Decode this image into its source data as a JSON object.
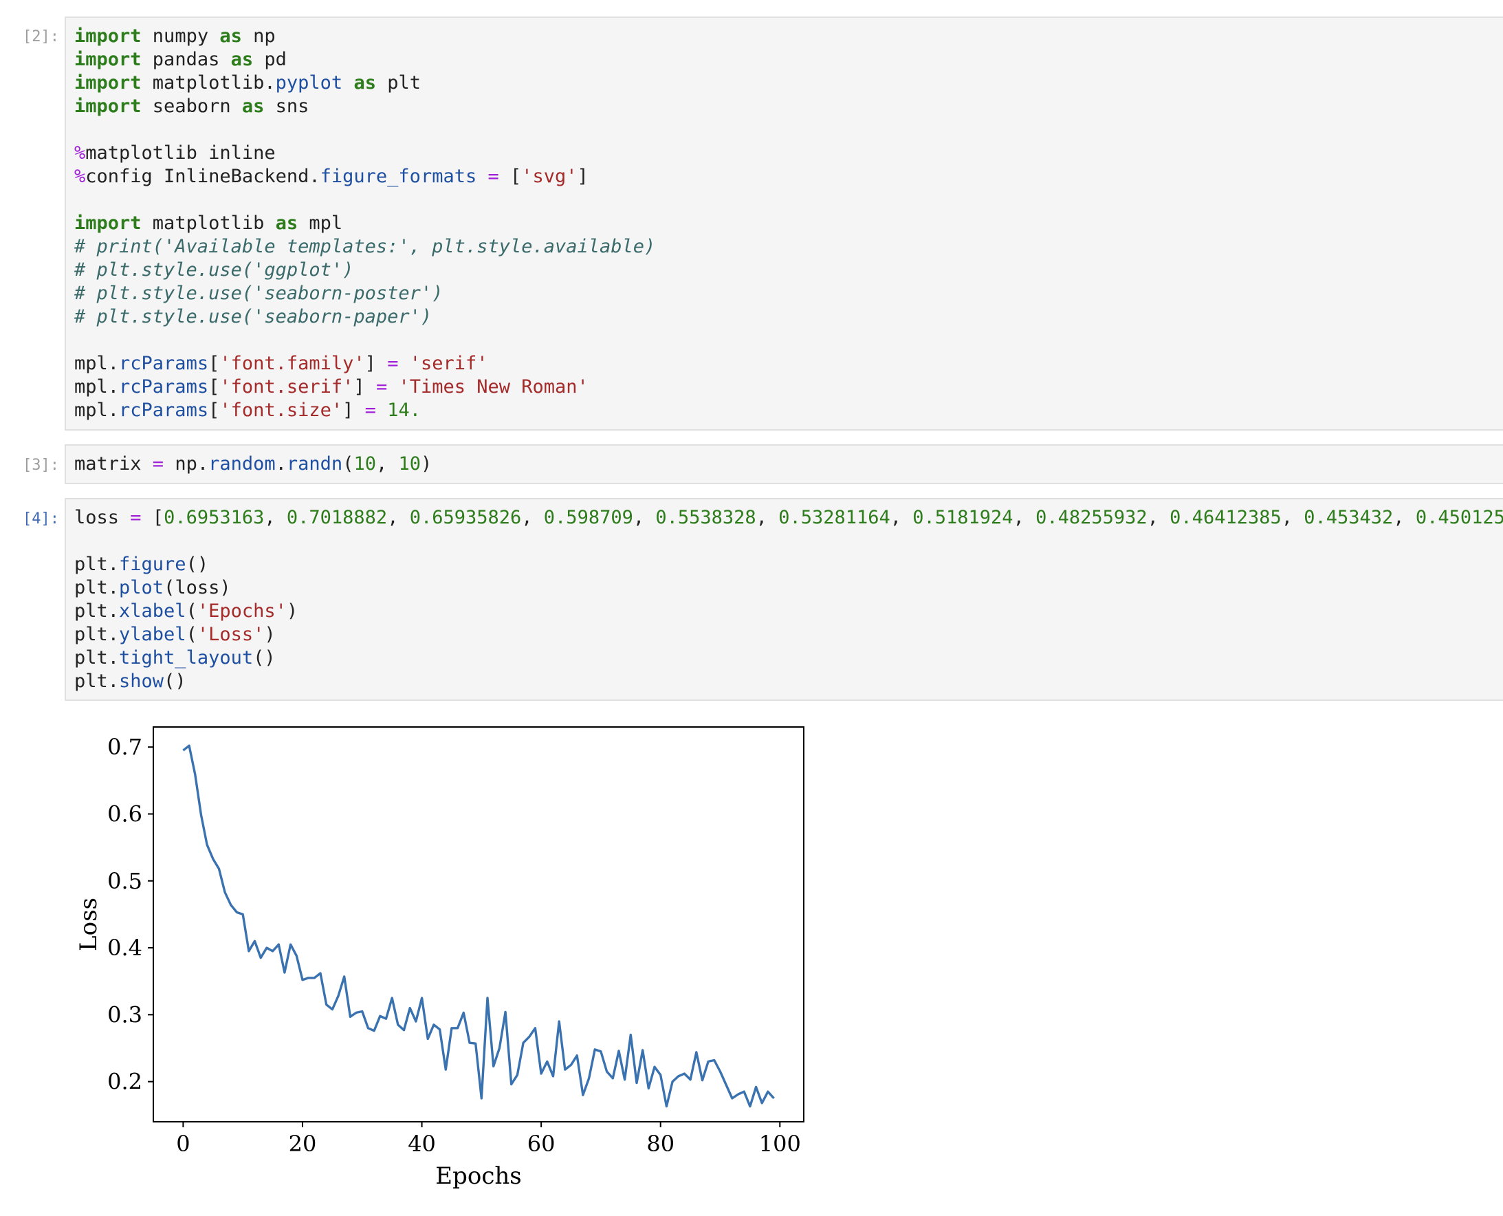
{
  "cells": [
    {
      "prompt": "[2]:",
      "lines": [
        [
          [
            "kw",
            "import"
          ],
          [
            "t",
            " numpy "
          ],
          [
            "kw",
            "as"
          ],
          [
            "t",
            " np"
          ]
        ],
        [
          [
            "kw",
            "import"
          ],
          [
            "t",
            " pandas "
          ],
          [
            "kw",
            "as"
          ],
          [
            "t",
            " pd"
          ]
        ],
        [
          [
            "kw",
            "import"
          ],
          [
            "t",
            " matplotlib."
          ],
          [
            "attr",
            "pyplot"
          ],
          [
            "t",
            " "
          ],
          [
            "kw",
            "as"
          ],
          [
            "t",
            " plt"
          ]
        ],
        [
          [
            "kw",
            "import"
          ],
          [
            "t",
            " seaborn "
          ],
          [
            "kw",
            "as"
          ],
          [
            "t",
            " sns"
          ]
        ],
        [],
        [
          [
            "mg",
            "%"
          ],
          [
            "t",
            "matplotlib inline"
          ]
        ],
        [
          [
            "mg",
            "%"
          ],
          [
            "t",
            "config InlineBackend."
          ],
          [
            "attr",
            "figure_formats"
          ],
          [
            "t",
            " "
          ],
          [
            "op",
            "="
          ],
          [
            "t",
            " ["
          ],
          [
            "str",
            "'svg'"
          ],
          [
            "t",
            "]"
          ]
        ],
        [],
        [
          [
            "kw",
            "import"
          ],
          [
            "t",
            " matplotlib "
          ],
          [
            "kw",
            "as"
          ],
          [
            "t",
            " mpl"
          ]
        ],
        [
          [
            "cm",
            "# print('Available templates:', plt.style.available)"
          ]
        ],
        [
          [
            "cm",
            "# plt.style.use('ggplot')"
          ]
        ],
        [
          [
            "cm",
            "# plt.style.use('seaborn-poster')"
          ]
        ],
        [
          [
            "cm",
            "# plt.style.use('seaborn-paper')"
          ]
        ],
        [],
        [
          [
            "t",
            "mpl."
          ],
          [
            "attr",
            "rcParams"
          ],
          [
            "t",
            "["
          ],
          [
            "str",
            "'font.family'"
          ],
          [
            "t",
            "] "
          ],
          [
            "op",
            "="
          ],
          [
            "t",
            " "
          ],
          [
            "str",
            "'serif'"
          ]
        ],
        [
          [
            "t",
            "mpl."
          ],
          [
            "attr",
            "rcParams"
          ],
          [
            "t",
            "["
          ],
          [
            "str",
            "'font.serif'"
          ],
          [
            "t",
            "] "
          ],
          [
            "op",
            "="
          ],
          [
            "t",
            " "
          ],
          [
            "str",
            "'Times New Roman'"
          ]
        ],
        [
          [
            "t",
            "mpl."
          ],
          [
            "attr",
            "rcParams"
          ],
          [
            "t",
            "["
          ],
          [
            "str",
            "'font.size'"
          ],
          [
            "t",
            "] "
          ],
          [
            "op",
            "="
          ],
          [
            "t",
            " "
          ],
          [
            "num",
            "14."
          ]
        ]
      ]
    },
    {
      "prompt": "[3]:",
      "lines": [
        [
          [
            "t",
            "matrix "
          ],
          [
            "op",
            "="
          ],
          [
            "t",
            " np."
          ],
          [
            "attr",
            "random"
          ],
          [
            "t",
            "."
          ],
          [
            "attr",
            "randn"
          ],
          [
            "t",
            "("
          ],
          [
            "num",
            "10"
          ],
          [
            "t",
            ", "
          ],
          [
            "num",
            "10"
          ],
          [
            "t",
            ")"
          ]
        ]
      ]
    },
    {
      "prompt": "[4]:",
      "lines": [
        [
          [
            "t",
            "loss "
          ],
          [
            "op",
            "="
          ],
          [
            "t",
            " ["
          ],
          [
            "num",
            "0.6953163"
          ],
          [
            "t",
            ", "
          ],
          [
            "num",
            "0.7018882"
          ],
          [
            "t",
            ", "
          ],
          [
            "num",
            "0.65935826"
          ],
          [
            "t",
            ", "
          ],
          [
            "num",
            "0.598709"
          ],
          [
            "t",
            ", "
          ],
          [
            "num",
            "0.5538328"
          ],
          [
            "t",
            ", "
          ],
          [
            "num",
            "0.53281164"
          ],
          [
            "t",
            ", "
          ],
          [
            "num",
            "0.5181924"
          ],
          [
            "t",
            ", "
          ],
          [
            "num",
            "0.48255932"
          ],
          [
            "t",
            ", "
          ],
          [
            "num",
            "0.46412385"
          ],
          [
            "t",
            ", "
          ],
          [
            "num",
            "0.453432"
          ],
          [
            "t",
            ", "
          ],
          [
            "num",
            "0.4501256"
          ],
          [
            "t",
            ", "
          ],
          [
            "num",
            "0."
          ]
        ],
        [],
        [
          [
            "t",
            "plt."
          ],
          [
            "attr",
            "figure"
          ],
          [
            "t",
            "()"
          ]
        ],
        [
          [
            "t",
            "plt."
          ],
          [
            "attr",
            "plot"
          ],
          [
            "t",
            "(loss)"
          ]
        ],
        [
          [
            "t",
            "plt."
          ],
          [
            "attr",
            "xlabel"
          ],
          [
            "t",
            "("
          ],
          [
            "str",
            "'Epochs'"
          ],
          [
            "t",
            ")"
          ]
        ],
        [
          [
            "t",
            "plt."
          ],
          [
            "attr",
            "ylabel"
          ],
          [
            "t",
            "("
          ],
          [
            "str",
            "'Loss'"
          ],
          [
            "t",
            ")"
          ]
        ],
        [
          [
            "t",
            "plt."
          ],
          [
            "attr",
            "tight_layout"
          ],
          [
            "t",
            "()"
          ]
        ],
        [
          [
            "t",
            "plt."
          ],
          [
            "attr",
            "show"
          ],
          [
            "t",
            "()"
          ]
        ]
      ]
    }
  ],
  "chart_data": {
    "type": "line",
    "title": "",
    "xlabel": "Epochs",
    "ylabel": "Loss",
    "xlim": [
      -5,
      104
    ],
    "ylim": [
      0.14,
      0.73
    ],
    "xticks": [
      "0",
      "20",
      "40",
      "60",
      "80",
      "100"
    ],
    "yticks": [
      "0.2",
      "0.3",
      "0.4",
      "0.5",
      "0.6",
      "0.7"
    ],
    "line_color": "#3a72b0",
    "series": [
      {
        "values": [
          0.695,
          0.702,
          0.659,
          0.599,
          0.554,
          0.533,
          0.518,
          0.483,
          0.464,
          0.453,
          0.45,
          0.395,
          0.41,
          0.385,
          0.4,
          0.395,
          0.405,
          0.363,
          0.405,
          0.388,
          0.352,
          0.355,
          0.355,
          0.362,
          0.315,
          0.308,
          0.328,
          0.357,
          0.297,
          0.303,
          0.305,
          0.28,
          0.276,
          0.298,
          0.294,
          0.325,
          0.285,
          0.277,
          0.31,
          0.29,
          0.325,
          0.264,
          0.285,
          0.278,
          0.218,
          0.28,
          0.28,
          0.303,
          0.258,
          0.257,
          0.175,
          0.325,
          0.223,
          0.25,
          0.304,
          0.196,
          0.21,
          0.258,
          0.267,
          0.28,
          0.212,
          0.23,
          0.208,
          0.29,
          0.218,
          0.225,
          0.239,
          0.18,
          0.205,
          0.248,
          0.245,
          0.215,
          0.205,
          0.246,
          0.203,
          0.27,
          0.198,
          0.247,
          0.19,
          0.222,
          0.21,
          0.163,
          0.2,
          0.208,
          0.212,
          0.203,
          0.244,
          0.202,
          0.23,
          0.232,
          0.215,
          0.195,
          0.175,
          0.181,
          0.185,
          0.163,
          0.192,
          0.168,
          0.185,
          0.175
        ]
      }
    ]
  }
}
